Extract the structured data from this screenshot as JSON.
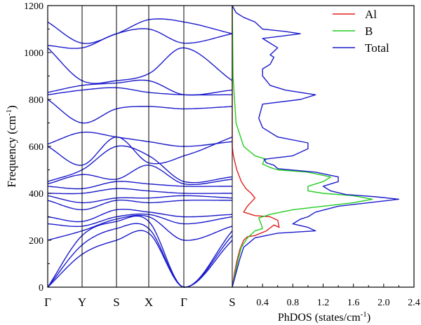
{
  "chart_data": [
    {
      "type": "line",
      "panel": "phonon-dispersion",
      "ylabel_main": "Frequency (cm",
      "ylabel_sup": "-1",
      "ylabel_close": ")",
      "ylim": [
        0,
        1200
      ],
      "yticks": [
        "0",
        "200",
        "400",
        "600",
        "800",
        "1000",
        "1200"
      ],
      "kpoints": [
        "Γ",
        "Y",
        "S",
        "X",
        "Γ",
        "S"
      ],
      "kpos": [
        0,
        1,
        2,
        3,
        4,
        5
      ],
      "line_color": "#1a1acc",
      "branches": [
        [
          0,
          140,
          200,
          230,
          0,
          200
        ],
        [
          0,
          180,
          250,
          250,
          0,
          220
        ],
        [
          0,
          220,
          280,
          280,
          0,
          240
        ],
        [
          200,
          240,
          290,
          300,
          200,
          260
        ],
        [
          270,
          260,
          300,
          310,
          270,
          300
        ],
        [
          300,
          280,
          330,
          320,
          300,
          310
        ],
        [
          370,
          330,
          370,
          360,
          370,
          370
        ],
        [
          390,
          360,
          380,
          380,
          390,
          380
        ],
        [
          400,
          400,
          420,
          410,
          400,
          400
        ],
        [
          430,
          420,
          450,
          440,
          430,
          430
        ],
        [
          440,
          480,
          460,
          520,
          440,
          460
        ],
        [
          450,
          500,
          600,
          560,
          450,
          470
        ],
        [
          600,
          520,
          640,
          530,
          560,
          640
        ],
        [
          610,
          660,
          640,
          620,
          600,
          620
        ],
        [
          800,
          700,
          760,
          770,
          760,
          770
        ],
        [
          820,
          840,
          850,
          830,
          820,
          820
        ],
        [
          830,
          860,
          870,
          880,
          820,
          840
        ],
        [
          1020,
          880,
          880,
          910,
          1020,
          880
        ],
        [
          1030,
          1020,
          1080,
          1100,
          1040,
          1080
        ],
        [
          1130,
          1040,
          1080,
          1140,
          1130,
          1080
        ]
      ]
    },
    {
      "type": "line",
      "panel": "phonon-dos",
      "xlabel_main": "PhDOS (states/cm",
      "xlabel_sup": "-1",
      "xlabel_close": ")",
      "xlim": [
        0,
        2.4
      ],
      "xticks": [
        "0.4",
        "0.8",
        "1.2",
        "1.6",
        "2.0",
        "2.4"
      ],
      "series": [
        {
          "name": "Al",
          "color": "#e02020",
          "points": [
            [
              0,
              0
            ],
            [
              0.03,
              60
            ],
            [
              0.06,
              110
            ],
            [
              0.1,
              160
            ],
            [
              0.15,
              200
            ],
            [
              0.2,
              215
            ],
            [
              0.3,
              220
            ],
            [
              0.45,
              240
            ],
            [
              0.55,
              265
            ],
            [
              0.62,
              255
            ],
            [
              0.6,
              285
            ],
            [
              0.5,
              300
            ],
            [
              0.3,
              305
            ],
            [
              0.15,
              320
            ],
            [
              0.2,
              345
            ],
            [
              0.3,
              380
            ],
            [
              0.25,
              400
            ],
            [
              0.18,
              420
            ],
            [
              0.12,
              450
            ],
            [
              0.06,
              500
            ],
            [
              0.03,
              540
            ],
            [
              0.01,
              570
            ],
            [
              0,
              600
            ],
            [
              0,
              1200
            ]
          ]
        },
        {
          "name": "B",
          "color": "#22cc22",
          "points": [
            [
              0,
              0
            ],
            [
              0.04,
              60
            ],
            [
              0.08,
              120
            ],
            [
              0.12,
              170
            ],
            [
              0.2,
              210
            ],
            [
              0.3,
              240
            ],
            [
              0.4,
              250
            ],
            [
              0.38,
              270
            ],
            [
              0.35,
              295
            ],
            [
              0.5,
              310
            ],
            [
              0.8,
              330
            ],
            [
              1.2,
              345
            ],
            [
              1.6,
              360
            ],
            [
              1.85,
              375
            ],
            [
              1.6,
              390
            ],
            [
              1.2,
              400
            ],
            [
              1.0,
              410
            ],
            [
              1.0,
              430
            ],
            [
              1.2,
              450
            ],
            [
              1.3,
              470
            ],
            [
              1.0,
              490
            ],
            [
              0.6,
              500
            ],
            [
              0.5,
              510
            ],
            [
              0.4,
              525
            ],
            [
              0.42,
              540
            ],
            [
              0.45,
              545
            ],
            [
              0.3,
              560
            ],
            [
              0.15,
              600
            ],
            [
              0.05,
              700
            ],
            [
              0.01,
              900
            ],
            [
              0,
              1200
            ]
          ]
        },
        {
          "name": "Total",
          "color": "#1a1acc",
          "points": [
            [
              0,
              0
            ],
            [
              0.05,
              60
            ],
            [
              0.1,
              120
            ],
            [
              0.15,
              170
            ],
            [
              0.3,
              210
            ],
            [
              0.6,
              230
            ],
            [
              1.1,
              240
            ],
            [
              1.0,
              255
            ],
            [
              0.8,
              270
            ],
            [
              0.9,
              290
            ],
            [
              1.0,
              300
            ],
            [
              1.1,
              320
            ],
            [
              1.4,
              345
            ],
            [
              1.8,
              360
            ],
            [
              2.2,
              375
            ],
            [
              1.9,
              385
            ],
            [
              1.5,
              395
            ],
            [
              1.3,
              410
            ],
            [
              1.2,
              430
            ],
            [
              1.4,
              450
            ],
            [
              1.4,
              470
            ],
            [
              1.1,
              490
            ],
            [
              0.6,
              505
            ],
            [
              0.55,
              520
            ],
            [
              0.45,
              530
            ],
            [
              0.42,
              545
            ],
            [
              0.8,
              560
            ],
            [
              1.0,
              590
            ],
            [
              1.0,
              615
            ],
            [
              0.6,
              640
            ],
            [
              0.4,
              680
            ],
            [
              0.35,
              720
            ],
            [
              0.4,
              780
            ],
            [
              0.9,
              800
            ],
            [
              1.1,
              820
            ],
            [
              0.7,
              840
            ],
            [
              0.5,
              860
            ],
            [
              0.45,
              880
            ],
            [
              0.4,
              900
            ],
            [
              0.4,
              930
            ],
            [
              0.5,
              950
            ],
            [
              0.55,
              980
            ],
            [
              0.5,
              990
            ],
            [
              0.6,
              1020
            ],
            [
              0.5,
              1040
            ],
            [
              0.4,
              1060
            ],
            [
              0.9,
              1080
            ],
            [
              0.7,
              1090
            ],
            [
              0.4,
              1100
            ],
            [
              0.3,
              1130
            ],
            [
              0.15,
              1150
            ],
            [
              0.05,
              1170
            ],
            [
              0,
              1200
            ]
          ]
        }
      ]
    }
  ]
}
